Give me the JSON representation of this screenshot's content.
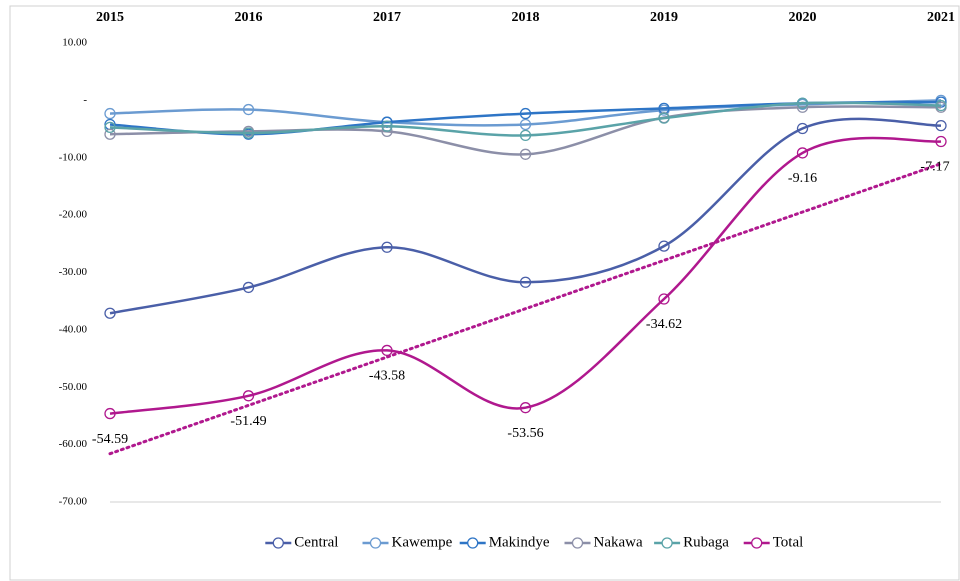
{
  "chart_data": {
    "type": "line",
    "categories": [
      "2015",
      "2016",
      "2017",
      "2018",
      "2019",
      "2020",
      "2021"
    ],
    "ylim": [
      -70,
      10
    ],
    "yticks": [
      {
        "value": 10,
        "label": "10.00"
      },
      {
        "value": 0,
        "label": "-"
      },
      {
        "value": -10,
        "label": "-10.00"
      },
      {
        "value": -20,
        "label": "-20.00"
      },
      {
        "value": -30,
        "label": "-30.00"
      },
      {
        "value": -40,
        "label": "-40.00"
      },
      {
        "value": -50,
        "label": "-50.00"
      },
      {
        "value": -60,
        "label": "-60.00"
      },
      {
        "value": -70,
        "label": "-70.00"
      }
    ],
    "grid": false,
    "legend": "bottom",
    "series": [
      {
        "name": "Central",
        "color": "#4a5fa8",
        "values": [
          -37.1,
          -32.6,
          -25.6,
          -31.7,
          -25.4,
          -4.9,
          -4.4
        ]
      },
      {
        "name": "Kawempe",
        "color": "#6b9bd1",
        "values": [
          -2.3,
          -1.6,
          -3.8,
          -4.2,
          -1.7,
          -0.7,
          0
        ]
      },
      {
        "name": "Makindye",
        "color": "#2e75c6",
        "values": [
          -4.2,
          -5.9,
          -3.8,
          -2.3,
          -1.4,
          -0.5,
          -0.3
        ]
      },
      {
        "name": "Nakawa",
        "color": "#8c8fa8",
        "values": [
          -5.9,
          -5.4,
          -5.4,
          -9.4,
          -3.0,
          -1.2,
          -1.2
        ]
      },
      {
        "name": "Rubaga",
        "color": "#5aa3a8",
        "values": [
          -4.7,
          -5.7,
          -4.5,
          -6.1,
          -3.1,
          -0.5,
          -0.9
        ]
      },
      {
        "name": "Total",
        "color": "#b0188e",
        "values": [
          -54.59,
          -51.49,
          -43.58,
          -53.56,
          -34.62,
          -9.16,
          -7.17
        ],
        "value_labels_shown": true,
        "trendline": "linear"
      }
    ]
  }
}
